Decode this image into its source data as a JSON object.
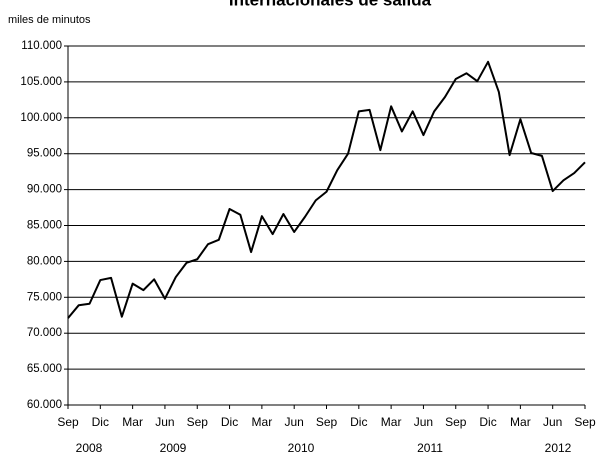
{
  "chart_data": {
    "type": "line",
    "title": "Internacionales de salida",
    "y_axis_label": "miles de minutos",
    "categories": [
      "Sep",
      null,
      null,
      "Dic",
      null,
      null,
      "Mar",
      null,
      null,
      "Jun",
      null,
      null,
      "Sep",
      null,
      null,
      "Dic",
      null,
      null,
      "Mar",
      null,
      null,
      "Jun",
      null,
      null,
      "Sep",
      null,
      null,
      "Dic",
      null,
      null,
      "Mar",
      null,
      null,
      "Jun",
      null,
      null,
      "Sep",
      null,
      null,
      "Dic",
      null,
      null,
      "Mar",
      null,
      null,
      "Jun",
      null,
      null,
      "Sep"
    ],
    "year_labels": [
      "2008",
      "2009",
      "2010",
      "2011",
      "2012"
    ],
    "series": [
      {
        "color": "#000000",
        "values": [
          72100,
          73900,
          74100,
          77400,
          77700,
          72300,
          76900,
          76000,
          77500,
          74800,
          77800,
          79800,
          80300,
          82400,
          83000,
          87300,
          86500,
          81300,
          86300,
          83800,
          86600,
          84100,
          86200,
          88500,
          89700,
          92700,
          95000,
          100900,
          101100,
          95500,
          101600,
          98100,
          100900,
          97600,
          100900,
          102900,
          105400,
          106200,
          105100,
          107800,
          103600,
          94800,
          99800,
          95100,
          94700,
          89800,
          91300,
          92300,
          93800
        ]
      }
    ],
    "ylim": [
      60000,
      110000
    ],
    "yticks": [
      {
        "value": 60000,
        "label": "60.000"
      },
      {
        "value": 65000,
        "label": "65.000"
      },
      {
        "value": 70000,
        "label": "70.000"
      },
      {
        "value": 75000,
        "label": "75.000"
      },
      {
        "value": 80000,
        "label": "80.000"
      },
      {
        "value": 85000,
        "label": "85.000"
      },
      {
        "value": 90000,
        "label": "90.000"
      },
      {
        "value": 95000,
        "label": "95.000"
      },
      {
        "value": 100000,
        "label": "100.000"
      },
      {
        "value": 105000,
        "label": "105.000"
      },
      {
        "value": 110000,
        "label": "110.000"
      }
    ],
    "grid": true
  }
}
